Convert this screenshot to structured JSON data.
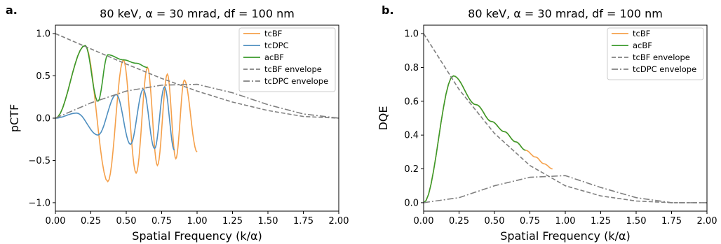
{
  "chart_data": [
    {
      "panel_label": "a.",
      "type": "line",
      "title": "80 keV,  α = 30 mrad,  df = 100 nm",
      "xlabel": "Spatial Frequency (k/α)",
      "ylabel": "pCTF",
      "xlim": [
        0.0,
        2.0
      ],
      "ylim": [
        -1.1,
        1.1
      ],
      "x_ticks": [
        "0.00",
        "0.25",
        "0.50",
        "0.75",
        "1.00",
        "1.25",
        "1.50",
        "1.75",
        "2.00"
      ],
      "y_ticks": [
        "−1.0",
        "−0.5",
        "0.0",
        "0.5",
        "1.0"
      ],
      "y_tick_values": [
        -1.0,
        -0.5,
        0.0,
        0.5,
        1.0
      ],
      "grid": false,
      "legend_position": "top-right",
      "legend": [
        "tcBF",
        "tcDPC",
        "acBF",
        "tcBF envelope",
        "tcDPC envelope"
      ],
      "series": [
        {
          "name": "tcBF",
          "color": "#f5a04a",
          "style": "solid",
          "peaks": [
            [
              0.21,
              0.86
            ],
            [
              0.37,
              -0.75
            ],
            [
              0.48,
              0.69
            ],
            [
              0.57,
              -0.65
            ],
            [
              0.65,
              0.6
            ],
            [
              0.72,
              -0.56
            ],
            [
              0.79,
              0.52
            ],
            [
              0.85,
              -0.48
            ],
            [
              0.91,
              0.45
            ],
            [
              1.0,
              -0.4
            ]
          ]
        },
        {
          "name": "tcDPC",
          "color": "#4f8fc0",
          "style": "solid",
          "peaks": [
            [
              0.15,
              0.06
            ],
            [
              0.3,
              -0.2
            ],
            [
              0.43,
              0.28
            ],
            [
              0.53,
              -0.31
            ],
            [
              0.62,
              0.34
            ],
            [
              0.7,
              -0.36
            ],
            [
              0.77,
              0.37
            ],
            [
              0.84,
              -0.38
            ]
          ]
        },
        {
          "name": "acBF",
          "color": "#3a9a2c",
          "style": "solid",
          "peaks": [
            [
              0.21,
              0.86
            ],
            [
              0.3,
              0.2
            ],
            [
              0.37,
              0.75
            ],
            [
              0.48,
              0.69
            ],
            [
              0.57,
              0.65
            ],
            [
              0.65,
              0.6
            ]
          ]
        },
        {
          "name": "tcBF envelope",
          "color": "#808080",
          "style": "dashed",
          "x": [
            0.0,
            0.25,
            0.5,
            0.75,
            1.0,
            1.25,
            1.5,
            1.75,
            2.0
          ],
          "y": [
            1.0,
            0.82,
            0.64,
            0.47,
            0.32,
            0.19,
            0.09,
            0.02,
            0.0
          ]
        },
        {
          "name": "tcDPC envelope",
          "color": "#808080",
          "style": "dashdot",
          "x": [
            0.0,
            0.25,
            0.5,
            0.75,
            1.0,
            1.25,
            1.5,
            1.75,
            2.0
          ],
          "y": [
            0.0,
            0.18,
            0.32,
            0.39,
            0.4,
            0.3,
            0.16,
            0.05,
            0.0
          ]
        }
      ]
    },
    {
      "panel_label": "b.",
      "type": "line",
      "title": "80 keV,  α = 30 mrad,  df = 100 nm",
      "xlabel": "Spatial Frequency (k/α)",
      "ylabel": "DQE",
      "xlim": [
        0.0,
        2.0
      ],
      "ylim": [
        -0.05,
        1.05
      ],
      "x_ticks": [
        "0.00",
        "0.25",
        "0.50",
        "0.75",
        "1.00",
        "1.25",
        "1.50",
        "1.75",
        "2.00"
      ],
      "y_ticks": [
        "0.0",
        "0.2",
        "0.4",
        "0.6",
        "0.8",
        "1.0"
      ],
      "y_tick_values": [
        0.0,
        0.2,
        0.4,
        0.6,
        0.8,
        1.0
      ],
      "grid": false,
      "legend_position": "top-right",
      "legend": [
        "tcBF",
        "acBF",
        "tcBF envelope",
        "tcDPC envelope"
      ],
      "series": [
        {
          "name": "tcBF",
          "color": "#f5a04a",
          "style": "solid",
          "peaks": [
            [
              0.21,
              0.75
            ],
            [
              0.37,
              0.58
            ],
            [
              0.48,
              0.48
            ],
            [
              0.57,
              0.42
            ],
            [
              0.65,
              0.36
            ],
            [
              0.72,
              0.31
            ],
            [
              0.79,
              0.27
            ],
            [
              0.85,
              0.23
            ],
            [
              0.91,
              0.2
            ]
          ]
        },
        {
          "name": "acBF",
          "color": "#3a9a2c",
          "style": "solid",
          "peaks": [
            [
              0.21,
              0.75
            ],
            [
              0.37,
              0.58
            ],
            [
              0.48,
              0.48
            ],
            [
              0.57,
              0.42
            ],
            [
              0.65,
              0.36
            ],
            [
              0.72,
              0.31
            ]
          ]
        },
        {
          "name": "tcBF envelope",
          "color": "#808080",
          "style": "dashed",
          "x": [
            0.0,
            0.25,
            0.5,
            0.75,
            1.0,
            1.25,
            1.5,
            1.75,
            2.0
          ],
          "y": [
            1.0,
            0.67,
            0.41,
            0.22,
            0.1,
            0.04,
            0.01,
            0.0,
            0.0
          ]
        },
        {
          "name": "tcDPC envelope",
          "color": "#808080",
          "style": "dashdot",
          "x": [
            0.0,
            0.25,
            0.5,
            0.75,
            1.0,
            1.25,
            1.5,
            1.75,
            2.0
          ],
          "y": [
            0.0,
            0.03,
            0.1,
            0.15,
            0.16,
            0.09,
            0.03,
            0.0,
            0.0
          ]
        }
      ]
    }
  ]
}
